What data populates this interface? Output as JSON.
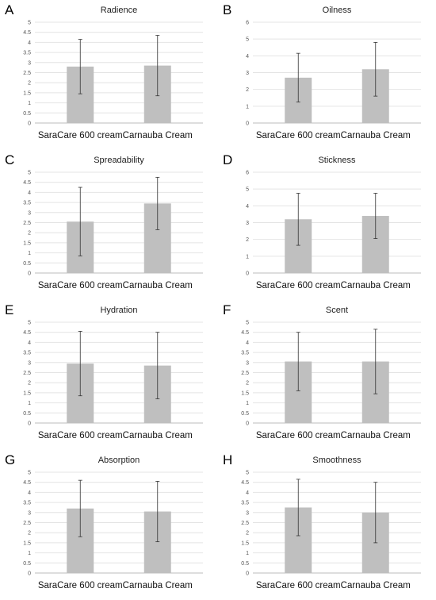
{
  "chart_data": [
    {
      "panel": "A",
      "type": "bar",
      "title": "Radience",
      "categories": [
        "SaraCare 600 cream",
        "Carnauba Cream"
      ],
      "values": [
        2.8,
        2.85
      ],
      "errors": [
        1.35,
        1.5
      ],
      "ylim": [
        0,
        5
      ],
      "ystep": 0.5,
      "grid": true,
      "bar_color": "#bfbfbf"
    },
    {
      "panel": "B",
      "type": "bar",
      "title": "Oilness",
      "categories": [
        "SaraCare 600 cream",
        "Carnauba Cream"
      ],
      "values": [
        2.7,
        3.2
      ],
      "errors": [
        1.45,
        1.6
      ],
      "ylim": [
        0,
        6
      ],
      "ystep": 1,
      "grid": true,
      "bar_color": "#bfbfbf"
    },
    {
      "panel": "C",
      "type": "bar",
      "title": "Spreadability",
      "categories": [
        "SaraCare 600 cream",
        "Carnauba Cream"
      ],
      "values": [
        2.55,
        3.45
      ],
      "errors": [
        1.7,
        1.3
      ],
      "ylim": [
        0,
        5
      ],
      "ystep": 0.5,
      "grid": true,
      "bar_color": "#bfbfbf"
    },
    {
      "panel": "D",
      "type": "bar",
      "title": "Stickness",
      "categories": [
        "SaraCare 600 cream",
        "Carnauba Cream"
      ],
      "values": [
        3.2,
        3.4
      ],
      "errors": [
        1.55,
        1.35
      ],
      "ylim": [
        0,
        6
      ],
      "ystep": 1,
      "grid": true,
      "bar_color": "#bfbfbf"
    },
    {
      "panel": "E",
      "type": "bar",
      "title": "Hydration",
      "categories": [
        "SaraCare 600 cream",
        "Carnauba Cream"
      ],
      "values": [
        2.95,
        2.85
      ],
      "errors": [
        1.6,
        1.65
      ],
      "ylim": [
        0,
        5
      ],
      "ystep": 0.5,
      "grid": true,
      "bar_color": "#bfbfbf"
    },
    {
      "panel": "F",
      "type": "bar",
      "title": "Scent",
      "categories": [
        "SaraCare 600 cream",
        "Carnauba Cream"
      ],
      "values": [
        3.05,
        3.05
      ],
      "errors": [
        1.45,
        1.6
      ],
      "ylim": [
        0,
        5
      ],
      "ystep": 0.5,
      "grid": true,
      "bar_color": "#bfbfbf"
    },
    {
      "panel": "G",
      "type": "bar",
      "title": "Absorption",
      "categories": [
        "SaraCare 600 cream",
        "Carnauba Cream"
      ],
      "values": [
        3.2,
        3.05
      ],
      "errors": [
        1.4,
        1.5
      ],
      "ylim": [
        0,
        5
      ],
      "ystep": 0.5,
      "grid": true,
      "bar_color": "#bfbfbf"
    },
    {
      "panel": "H",
      "type": "bar",
      "title": "Smoothness",
      "categories": [
        "SaraCare 600 cream",
        "Carnauba Cream"
      ],
      "values": [
        3.25,
        3.0
      ],
      "errors": [
        1.4,
        1.5
      ],
      "ylim": [
        0,
        5
      ],
      "ystep": 0.5,
      "grid": true,
      "bar_color": "#bfbfbf"
    }
  ]
}
